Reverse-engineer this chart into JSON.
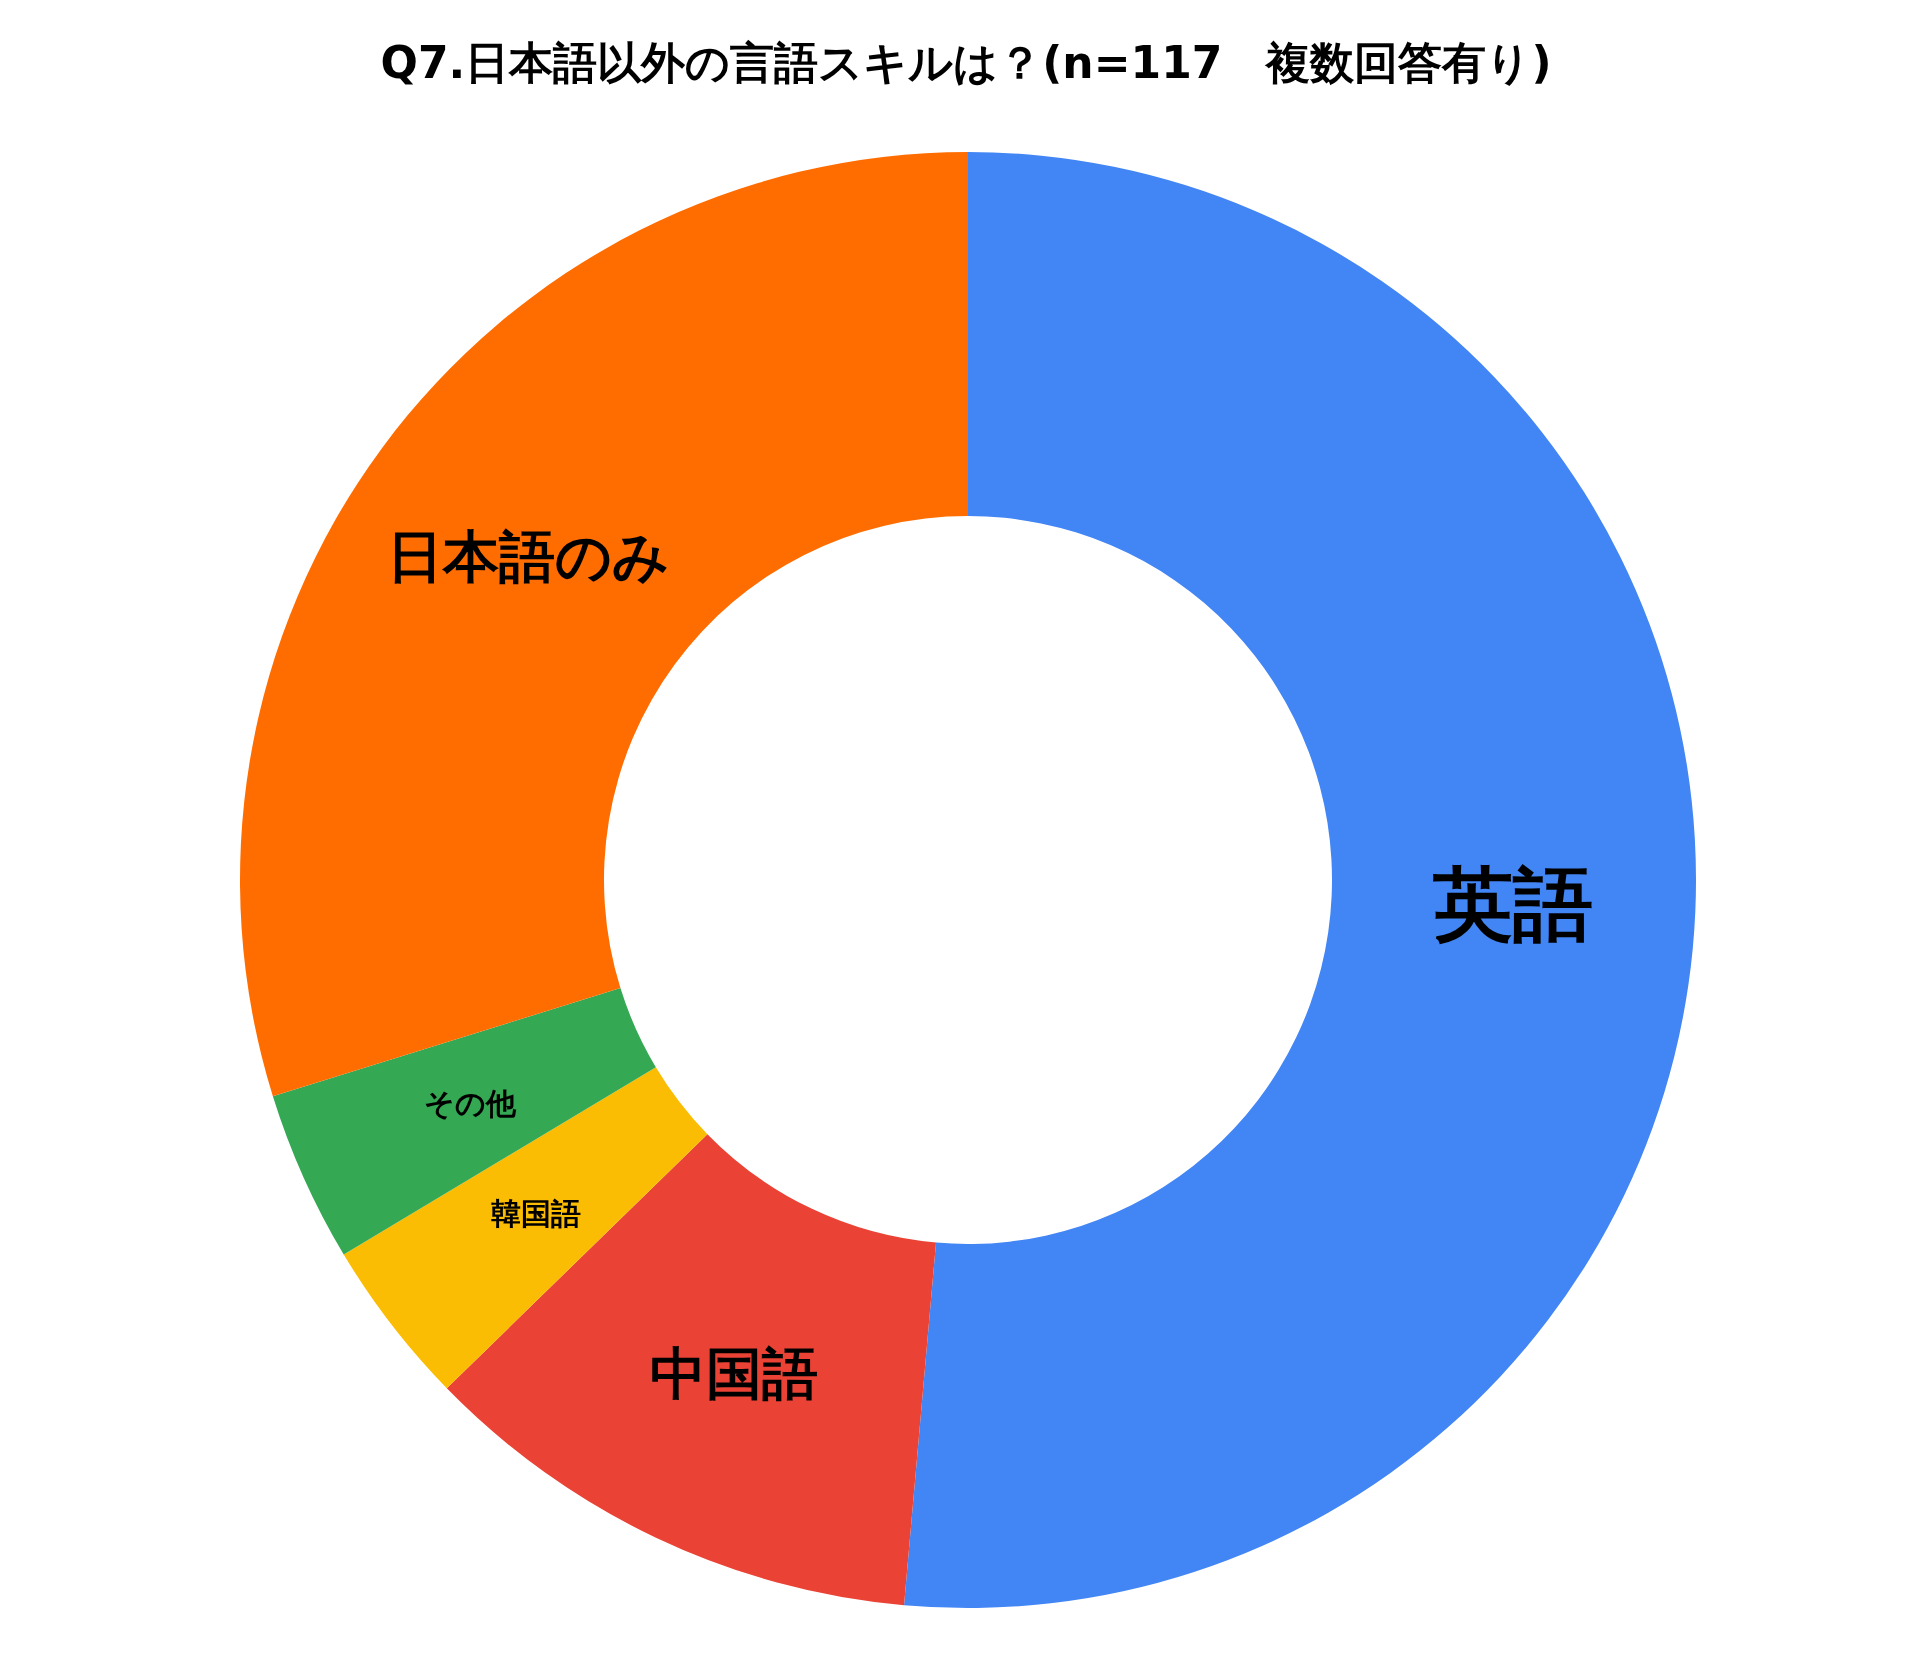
{
  "chart_data": {
    "type": "donut",
    "title": "Q7.日本語以外の言語スキルは？(n=117　複数回答有り)",
    "categories": [
      "英語",
      "中国語",
      "韓国語",
      "その他",
      "日本語のみ"
    ],
    "values": [
      51.4,
      11.3,
      3.7,
      3.8,
      29.8
    ],
    "colors": [
      "#4285f4",
      "#ea4335",
      "#fbbc04",
      "#34a853",
      "#ff6d01"
    ],
    "legend": false
  }
}
